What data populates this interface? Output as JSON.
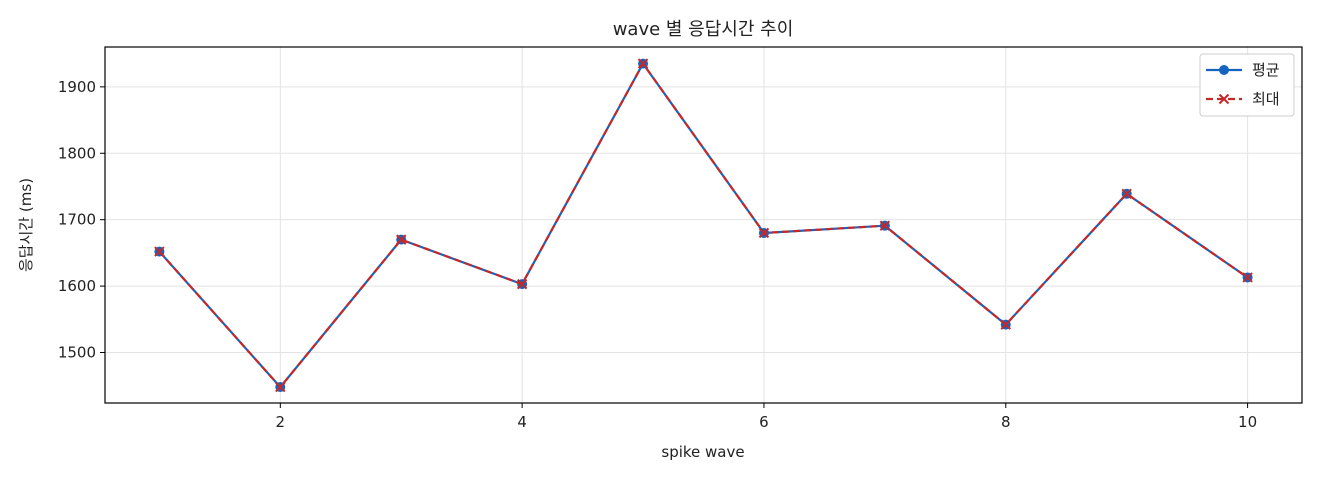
{
  "chart_data": {
    "type": "line",
    "title": "wave 별 응답시간 추이",
    "xlabel": "spike wave",
    "ylabel": "응답시간 (ms)",
    "x": [
      1,
      2,
      3,
      4,
      5,
      6,
      7,
      8,
      9,
      10
    ],
    "xlim": [
      0.55,
      10.45
    ],
    "ylim": [
      1424,
      1960
    ],
    "xticks": [
      2,
      4,
      6,
      8,
      10
    ],
    "yticks": [
      1500,
      1600,
      1700,
      1800,
      1900
    ],
    "grid": true,
    "legend_position": "top-right",
    "series": [
      {
        "name": "평균",
        "color": "#1565c0",
        "style": "solid",
        "marker": "circle",
        "values": [
          1652,
          1448,
          1670,
          1603,
          1935,
          1680,
          1691,
          1542,
          1739,
          1613
        ]
      },
      {
        "name": "최대",
        "color": "#c62828",
        "style": "dashed",
        "marker": "x",
        "values": [
          1652,
          1448,
          1670,
          1603,
          1935,
          1680,
          1691,
          1542,
          1739,
          1613
        ]
      }
    ]
  }
}
